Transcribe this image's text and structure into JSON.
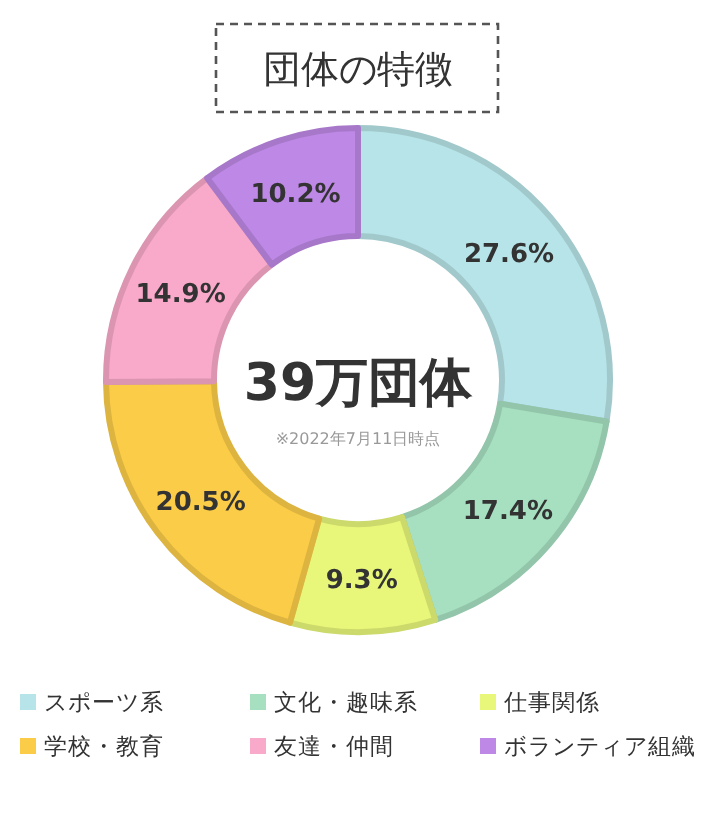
{
  "chart_data": {
    "type": "donut",
    "title": "団体の特徴",
    "categories": [
      "スポーツ系",
      "文化・趣味系",
      "仕事関係",
      "学校・教育",
      "友達・仲間",
      "ボランティア組織"
    ],
    "values": [
      27.6,
      17.4,
      9.3,
      20.5,
      14.9,
      10.2
    ],
    "value_labels": [
      "27.6%",
      "17.4%",
      "9.3%",
      "20.5%",
      "14.9%",
      "10.2%"
    ],
    "colors": [
      "#b7e4e8",
      "#a6e0c0",
      "#e8f77a",
      "#fbcc48",
      "#f9a9c9",
      "#be88e6"
    ],
    "annotations": [
      "39万団体",
      "※2022年7月11日時点"
    ],
    "legend": "bottom"
  }
}
